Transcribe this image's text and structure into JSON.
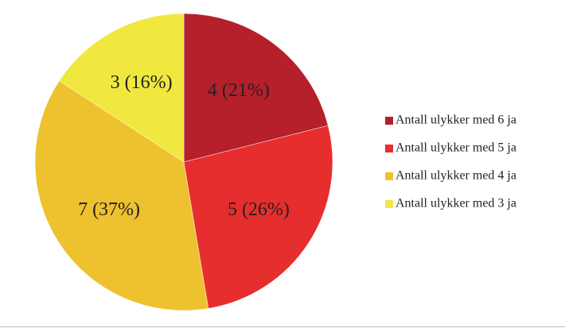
{
  "chart_data": {
    "type": "pie",
    "categories": [
      "Antall ulykker med 6 ja",
      "Antall ulykker med 5 ja",
      "Antall ulykker med 4 ja",
      "Antall ulykker med 3 ja"
    ],
    "values": [
      4,
      5,
      7,
      3
    ],
    "value_labels": [
      "4 (21%)",
      "5 (26%)",
      "7 (37%)",
      "3 (16%)"
    ],
    "colors": [
      "#b5202b",
      "#e62e2e",
      "#eec12f",
      "#f0e83f"
    ],
    "legend": "right"
  }
}
